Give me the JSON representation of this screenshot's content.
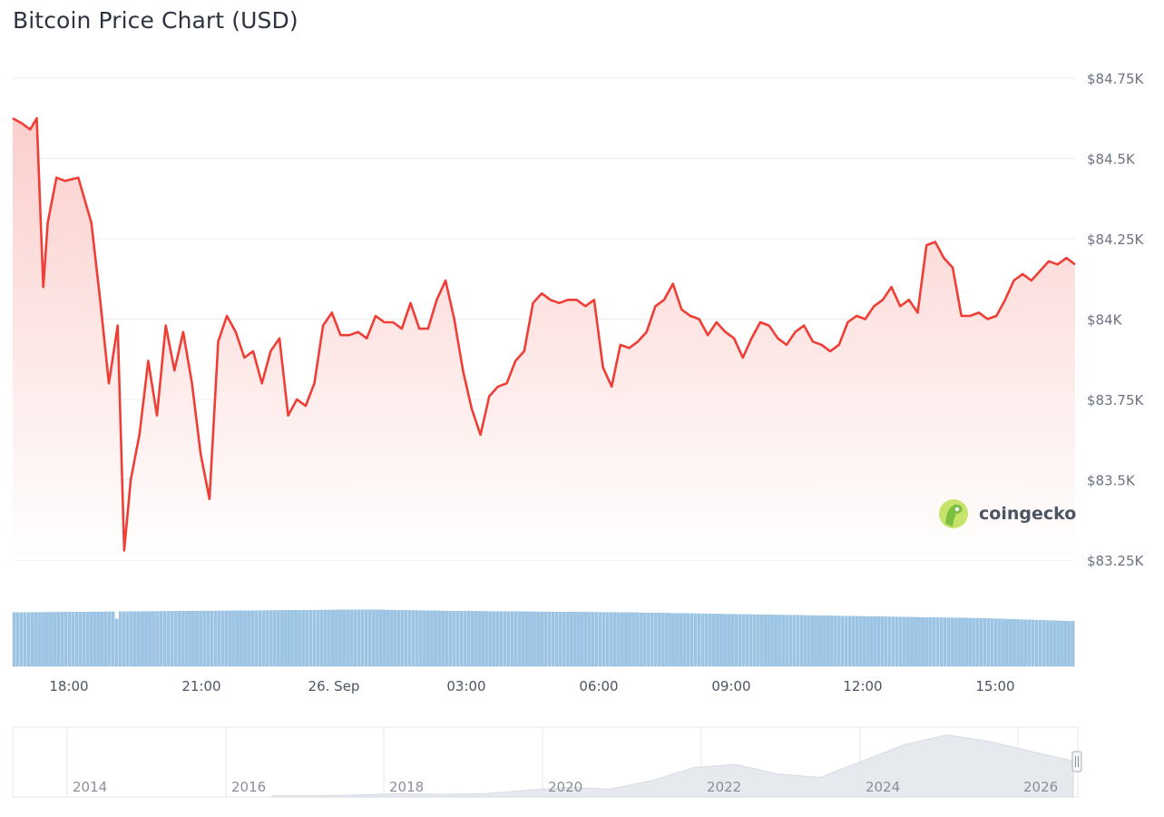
{
  "title": "Bitcoin Price Chart (USD)",
  "brand": {
    "name": "coingecko",
    "icon": "gecko-icon"
  },
  "colors": {
    "line": "#ef3e36",
    "fill_top": "#fbd3d1",
    "volume": "#9cc4e4",
    "volume_stroke": "#7fb0d8",
    "grid": "#ececec",
    "navigator": "#e3e7ec"
  },
  "chart_data": {
    "type": "line",
    "title": "Bitcoin Price Chart (USD)",
    "currency": "USD",
    "ylim": [
      83250,
      84750
    ],
    "y_ticks": [
      {
        "value": 84750,
        "label": "$84.75K"
      },
      {
        "value": 84500,
        "label": "$84.5K"
      },
      {
        "value": 84250,
        "label": "$84.25K"
      },
      {
        "value": 84000,
        "label": "$84K"
      },
      {
        "value": 83750,
        "label": "$83.75K"
      },
      {
        "value": 83500,
        "label": "$83.5K"
      },
      {
        "value": 83250,
        "label": "$83.25K"
      }
    ],
    "xlim_hours": [
      17.0,
      33.0
    ],
    "x_ticks": [
      {
        "hour": 18,
        "label": "18:00"
      },
      {
        "hour": 21,
        "label": "21:00"
      },
      {
        "hour": 24,
        "label": "26. Sep"
      },
      {
        "hour": 27,
        "label": "03:00"
      },
      {
        "hour": 30,
        "label": "06:00"
      },
      {
        "hour": 33,
        "label": "09:00"
      },
      {
        "hour": 36,
        "label": "12:00"
      },
      {
        "hour": 39,
        "label": "15:00"
      }
    ],
    "series": [
      {
        "type": "line",
        "points": [
          [
            16.8,
            84625
          ],
          [
            17.0,
            84610
          ],
          [
            17.2,
            84590
          ],
          [
            17.35,
            84625
          ],
          [
            17.5,
            84100
          ],
          [
            17.6,
            84300
          ],
          [
            17.8,
            84440
          ],
          [
            18.0,
            84430
          ],
          [
            18.3,
            84440
          ],
          [
            18.6,
            84300
          ],
          [
            18.8,
            84060
          ],
          [
            19.0,
            83800
          ],
          [
            19.2,
            83980
          ],
          [
            19.35,
            83280
          ],
          [
            19.5,
            83500
          ],
          [
            19.7,
            83640
          ],
          [
            19.9,
            83870
          ],
          [
            20.1,
            83700
          ],
          [
            20.3,
            83980
          ],
          [
            20.5,
            83840
          ],
          [
            20.7,
            83960
          ],
          [
            20.9,
            83800
          ],
          [
            21.1,
            83580
          ],
          [
            21.3,
            83440
          ],
          [
            21.5,
            83930
          ],
          [
            21.7,
            84010
          ],
          [
            21.9,
            83960
          ],
          [
            22.1,
            83880
          ],
          [
            22.3,
            83900
          ],
          [
            22.5,
            83800
          ],
          [
            22.7,
            83900
          ],
          [
            22.9,
            83940
          ],
          [
            23.1,
            83700
          ],
          [
            23.3,
            83750
          ],
          [
            23.5,
            83730
          ],
          [
            23.7,
            83800
          ],
          [
            23.9,
            83980
          ],
          [
            24.1,
            84020
          ],
          [
            24.3,
            83950
          ],
          [
            24.5,
            83950
          ],
          [
            24.7,
            83960
          ],
          [
            24.9,
            83940
          ],
          [
            25.1,
            84010
          ],
          [
            25.3,
            83990
          ],
          [
            25.5,
            83990
          ],
          [
            25.7,
            83970
          ],
          [
            25.9,
            84050
          ],
          [
            26.1,
            83970
          ],
          [
            26.3,
            83970
          ],
          [
            26.5,
            84060
          ],
          [
            26.7,
            84120
          ],
          [
            26.9,
            84000
          ],
          [
            27.1,
            83840
          ],
          [
            27.3,
            83720
          ],
          [
            27.5,
            83640
          ],
          [
            27.7,
            83760
          ],
          [
            27.9,
            83790
          ],
          [
            28.1,
            83800
          ],
          [
            28.3,
            83870
          ],
          [
            28.5,
            83900
          ],
          [
            28.7,
            84050
          ],
          [
            28.9,
            84080
          ],
          [
            29.1,
            84060
          ],
          [
            29.3,
            84050
          ],
          [
            29.5,
            84060
          ],
          [
            29.7,
            84060
          ],
          [
            29.9,
            84040
          ],
          [
            30.1,
            84060
          ],
          [
            30.3,
            83850
          ],
          [
            30.5,
            83790
          ],
          [
            30.7,
            83920
          ],
          [
            30.9,
            83910
          ],
          [
            31.1,
            83930
          ],
          [
            31.3,
            83960
          ],
          [
            31.5,
            84040
          ],
          [
            31.7,
            84060
          ],
          [
            31.9,
            84110
          ],
          [
            32.1,
            84030
          ],
          [
            32.3,
            84010
          ],
          [
            32.5,
            84000
          ],
          [
            32.7,
            83950
          ],
          [
            32.9,
            83990
          ],
          [
            33.1,
            83960
          ],
          [
            33.3,
            83940
          ],
          [
            33.5,
            83880
          ],
          [
            33.7,
            83940
          ],
          [
            33.9,
            83990
          ],
          [
            34.1,
            83980
          ],
          [
            34.3,
            83940
          ],
          [
            34.5,
            83920
          ],
          [
            34.7,
            83960
          ],
          [
            34.9,
            83980
          ],
          [
            35.1,
            83930
          ],
          [
            35.3,
            83920
          ],
          [
            35.5,
            83900
          ],
          [
            35.7,
            83920
          ],
          [
            35.9,
            83990
          ],
          [
            36.1,
            84010
          ],
          [
            36.3,
            84000
          ],
          [
            36.5,
            84040
          ],
          [
            36.7,
            84060
          ],
          [
            36.9,
            84100
          ],
          [
            37.1,
            84040
          ],
          [
            37.3,
            84060
          ],
          [
            37.5,
            84020
          ],
          [
            37.7,
            84230
          ],
          [
            37.9,
            84240
          ],
          [
            38.1,
            84190
          ],
          [
            38.3,
            84160
          ],
          [
            38.5,
            84010
          ],
          [
            38.7,
            84010
          ],
          [
            38.9,
            84020
          ],
          [
            39.1,
            84000
          ],
          [
            39.3,
            84010
          ],
          [
            39.5,
            84060
          ],
          [
            39.7,
            84120
          ],
          [
            39.9,
            84140
          ],
          [
            40.1,
            84120
          ],
          [
            40.3,
            84150
          ],
          [
            40.5,
            84180
          ],
          [
            40.7,
            84170
          ],
          [
            40.9,
            84190
          ],
          [
            41.1,
            84170
          ]
        ]
      }
    ],
    "volume": {
      "type": "bar",
      "note": "relative volume profile",
      "levels": [
        0.74,
        0.75,
        0.76,
        0.77,
        0.78,
        0.76,
        0.75,
        0.74,
        0.72,
        0.7,
        0.68,
        0.66,
        0.62
      ]
    },
    "navigator": {
      "x_ticks": [
        "2014",
        "2016",
        "2018",
        "2020",
        "2022",
        "2024",
        "2026"
      ],
      "profile": [
        0.02,
        0.02,
        0.03,
        0.05,
        0.04,
        0.05,
        0.1,
        0.15,
        0.12,
        0.25,
        0.45,
        0.5,
        0.35,
        0.3,
        0.55,
        0.8,
        0.95,
        0.85,
        0.7,
        0.55
      ]
    }
  }
}
